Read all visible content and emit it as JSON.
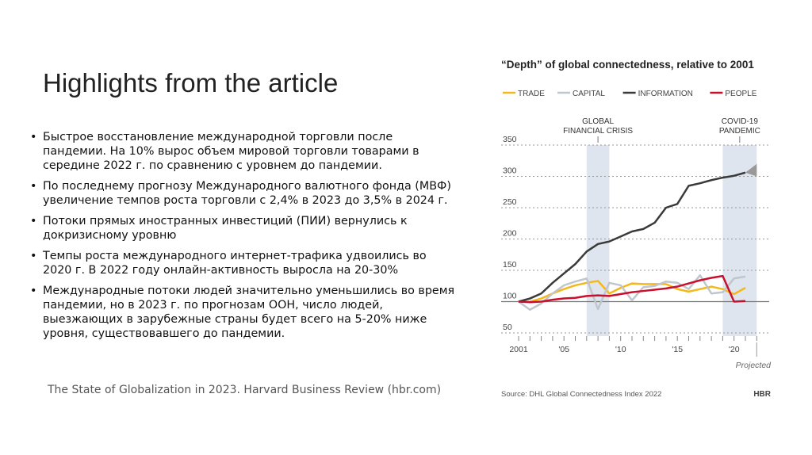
{
  "slide": {
    "title": "Highlights from the article",
    "bullets": [
      "Быстрое восстановление международной торговли после пандемии. На 10% вырос объем мировой торговли товарами в середине 2022 г. по сравнению с уровнем до пандемии.",
      "По последнему прогнозу Международного валютного фонда (МВФ) увеличение темпов роста торговли с 2,4% в 2023 до 3,5% в 2024 г.",
      "Потоки прямых иностранных инвестиций (ПИИ) вернулись к докризисному уровню",
      "Темпы роста международного интернет-трафика удвоились во 2020 г. В 2022 году онлайн-активность выросла на 20-30%",
      "Международные потоки людей значительно уменьшились во время пандемии, но в 2023 г. по прогнозам ООН, число людей, выезжающих в зарубежные страны будет всего на 5-20% ниже уровня, существовавшего до пандемии."
    ],
    "source": "The State of Globalization in 2023. Harvard Business Review (hbr.com)"
  },
  "chart_data": {
    "type": "line",
    "title": "“Depth” of global connectedness, relative to 2001",
    "x": [
      2001,
      2002,
      2003,
      2004,
      2005,
      2006,
      2007,
      2008,
      2009,
      2010,
      2011,
      2012,
      2013,
      2014,
      2015,
      2016,
      2017,
      2018,
      2019,
      2020,
      2021
    ],
    "xticklabels": [
      {
        "year": 2001,
        "label": "2001"
      },
      {
        "year": 2005,
        "label": "'05"
      },
      {
        "year": 2010,
        "label": "'10"
      },
      {
        "year": 2015,
        "label": "'15"
      },
      {
        "year": 2020,
        "label": "'20"
      }
    ],
    "yticks": [
      50,
      100,
      150,
      200,
      250,
      300,
      350
    ],
    "ylim": [
      50,
      350
    ],
    "series": [
      {
        "name": "TRADE",
        "color": "#f5b81c",
        "values": [
          100,
          100,
          105,
          113,
          120,
          126,
          130,
          133,
          113,
          122,
          129,
          128,
          128,
          128,
          120,
          116,
          120,
          124,
          120,
          112,
          122
        ]
      },
      {
        "name": "CAPITAL",
        "color": "#bfc6cc",
        "values": [
          100,
          87,
          97,
          113,
          126,
          132,
          137,
          88,
          130,
          126,
          102,
          123,
          125,
          132,
          130,
          120,
          142,
          113,
          115,
          137,
          140
        ]
      },
      {
        "name": "INFORMATION",
        "color": "#3a3a3a",
        "values": [
          100,
          105,
          113,
          130,
          145,
          160,
          180,
          192,
          196,
          204,
          212,
          216,
          226,
          250,
          256,
          285,
          289,
          294,
          298,
          301,
          306
        ]
      },
      {
        "name": "PEOPLE",
        "color": "#c8102e",
        "values": [
          100,
          99,
          100,
          103,
          105,
          106,
          109,
          110,
          109,
          112,
          115,
          117,
          119,
          121,
          124,
          129,
          134,
          138,
          141,
          100,
          101
        ]
      }
    ],
    "shaded": [
      {
        "label_lines": [
          "GLOBAL",
          "FINANCIAL CRISIS"
        ],
        "from": 2007,
        "to": 2009
      },
      {
        "label_lines": [
          "COVID-19",
          "PANDEMIC"
        ],
        "from": 2019,
        "to": 2022
      }
    ],
    "projected_label": "Projected",
    "source": "Source: DHL Global Connectedness Index 2022",
    "brand": "HBR"
  }
}
